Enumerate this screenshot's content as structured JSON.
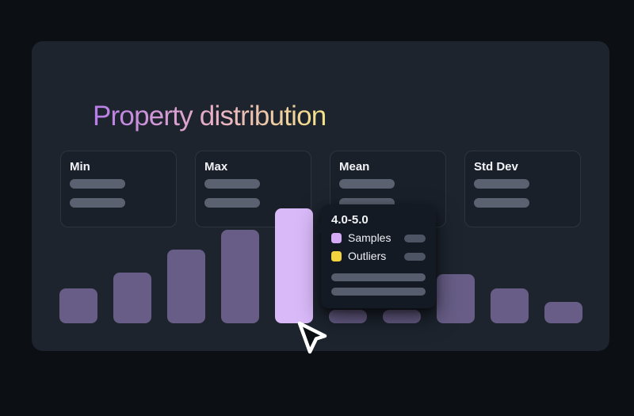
{
  "page": {
    "background": "#0c0f14"
  },
  "panel": {
    "title": "Property distribution"
  },
  "stats": {
    "cards": [
      {
        "label": "Min"
      },
      {
        "label": "Max"
      },
      {
        "label": "Mean"
      },
      {
        "label": "Std Dev"
      }
    ]
  },
  "chart_data": {
    "type": "bar",
    "title": "Property distribution",
    "categories": [
      "",
      "",
      "",
      "",
      "4.0-5.0",
      "",
      "",
      "",
      "",
      ""
    ],
    "values": [
      44,
      64,
      93,
      118,
      145,
      17,
      17,
      62,
      44,
      27
    ],
    "values_note": "relative bar heights in px; chart is a skeleton placeholder with no axes, labels or gridlines",
    "highlighted_index": 4,
    "occluded_by_tooltip_indices": [
      5,
      6
    ],
    "grid": false,
    "axes_visible": false,
    "legend": [
      {
        "label": "Samples",
        "color": "#d5abf6"
      },
      {
        "label": "Outliers",
        "color": "#f2d53e"
      }
    ],
    "legend_position": "tooltip"
  },
  "tooltip": {
    "title": "4.0-5.0",
    "legend": [
      {
        "label": "Samples",
        "color": "#d5abf6"
      },
      {
        "label": "Outliers",
        "color": "#f2d53e"
      }
    ]
  },
  "icons": {
    "cursor": "mouse-pointer-arrow"
  },
  "colors": {
    "page_bg": "#0c0f14",
    "panel_bg": "#1d242e",
    "card_bg": "#1a202a",
    "card_border": "#2d3440",
    "skeleton": "#5a6170",
    "bar": "#675d86",
    "bar_highlight": "#d9b9f8",
    "tooltip_bg": "#141a24",
    "tooltip_pill": "#4d5464",
    "tooltip_wide_pill": "#565d6d",
    "swatch_purple": "#d5abf6",
    "swatch_yellow": "#f2d53e",
    "text": "#f2f4f7",
    "title_gradient_start": "#b77ce8",
    "title_gradient_mid": "#e9b0c6",
    "title_gradient_end": "#f2e388"
  }
}
